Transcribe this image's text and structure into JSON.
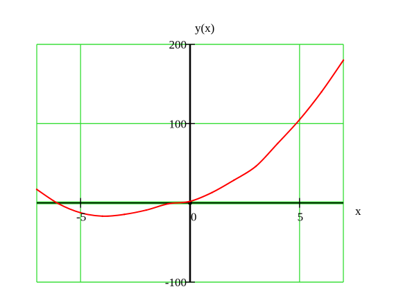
{
  "chart_data": {
    "type": "line",
    "title": "",
    "xlabel": "x",
    "ylabel": "y(x)",
    "xlim": [
      -7,
      7
    ],
    "ylim": [
      -100,
      200
    ],
    "grid": true,
    "x_ticks": [
      {
        "value": -5,
        "label": "-5"
      },
      {
        "value": 0,
        "label": "0"
      },
      {
        "value": 5,
        "label": "5"
      }
    ],
    "y_ticks": [
      {
        "value": -100,
        "label": "-100"
      },
      {
        "value": 100,
        "label": "100"
      },
      {
        "value": 200,
        "label": "200"
      }
    ],
    "series": [
      {
        "color": "#ff0000",
        "x": [
          -7,
          -6,
          -5,
          -4,
          -3,
          -2,
          -1,
          0,
          1,
          2,
          3,
          4,
          5,
          6,
          7
        ],
        "y": [
          17,
          -1.2,
          -12.5,
          -16.8,
          -14.5,
          -9.1,
          -1.2,
          1.9,
          13,
          28.6,
          46,
          75,
          105,
          140,
          180
        ]
      }
    ],
    "colors": {
      "grid": "#33dd33",
      "axis": "#000000",
      "curve": "#ff0000"
    }
  }
}
